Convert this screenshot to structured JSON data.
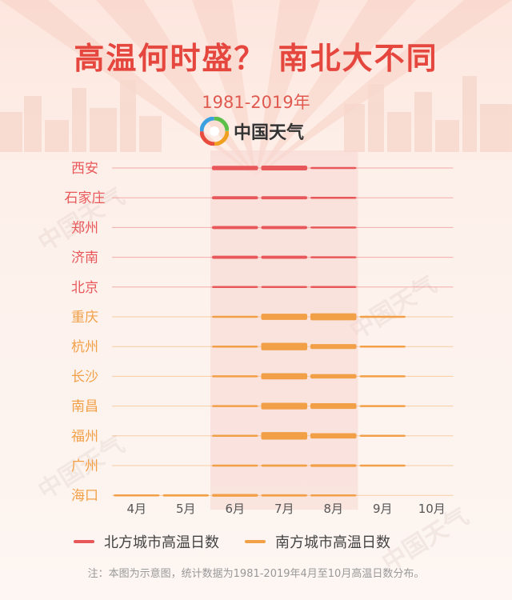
{
  "title": "高温何时盛？ 南北大不同",
  "subtitle": "1981-2019年",
  "brand": {
    "name": "中国天气",
    "logo_icon": "china-weather-swirl-logo"
  },
  "watermark": "中国天气",
  "legend": [
    {
      "label": "北方城市高温日数",
      "color": "#e8585a"
    },
    {
      "label": "南方城市高温日数",
      "color": "#f2a048"
    }
  ],
  "note": "注：本图为示意图，统计数据为1981-2019年4月至10月高温日数分布。",
  "chart_data": {
    "type": "bar",
    "categories": [
      "4月",
      "5月",
      "6月",
      "7月",
      "8月",
      "9月",
      "10月"
    ],
    "highlight_category": "6月",
    "grid": true,
    "legend_position": "bottom",
    "series": [
      {
        "name": "西安",
        "group": "北方城市高温日数",
        "values": [
          0,
          0,
          10,
          11,
          3,
          0,
          0
        ]
      },
      {
        "name": "石家庄",
        "group": "北方城市高温日数",
        "values": [
          0,
          0,
          7,
          7,
          2,
          0,
          0
        ]
      },
      {
        "name": "郑州",
        "group": "北方城市高温日数",
        "values": [
          0,
          0,
          7,
          7,
          3,
          0,
          0
        ]
      },
      {
        "name": "济南",
        "group": "北方城市高温日数",
        "values": [
          0,
          0,
          7,
          7,
          2,
          0,
          0
        ]
      },
      {
        "name": "北京",
        "group": "北方城市高温日数",
        "values": [
          0,
          0,
          4,
          4,
          1,
          0,
          0
        ]
      },
      {
        "name": "重庆",
        "group": "南方城市高温日数",
        "values": [
          0,
          0,
          2,
          14,
          16,
          3,
          0
        ]
      },
      {
        "name": "杭州",
        "group": "南方城市高温日数",
        "values": [
          0,
          0,
          1,
          17,
          11,
          1,
          0
        ]
      },
      {
        "name": "长沙",
        "group": "南方城市高温日数",
        "values": [
          0,
          0,
          1,
          14,
          10,
          2,
          0
        ]
      },
      {
        "name": "南昌",
        "group": "南方城市高温日数",
        "values": [
          0,
          0,
          1,
          15,
          13,
          1,
          0
        ]
      },
      {
        "name": "福州",
        "group": "南方城市高温日数",
        "values": [
          0,
          0,
          3,
          17,
          12,
          2,
          0
        ]
      },
      {
        "name": "广州",
        "group": "南方城市高温日数",
        "values": [
          0,
          0,
          1,
          5,
          6,
          1,
          0
        ]
      },
      {
        "name": "海口",
        "group": "南方城市高温日数",
        "values": [
          1,
          5,
          6,
          5,
          1,
          0,
          0
        ]
      }
    ]
  }
}
